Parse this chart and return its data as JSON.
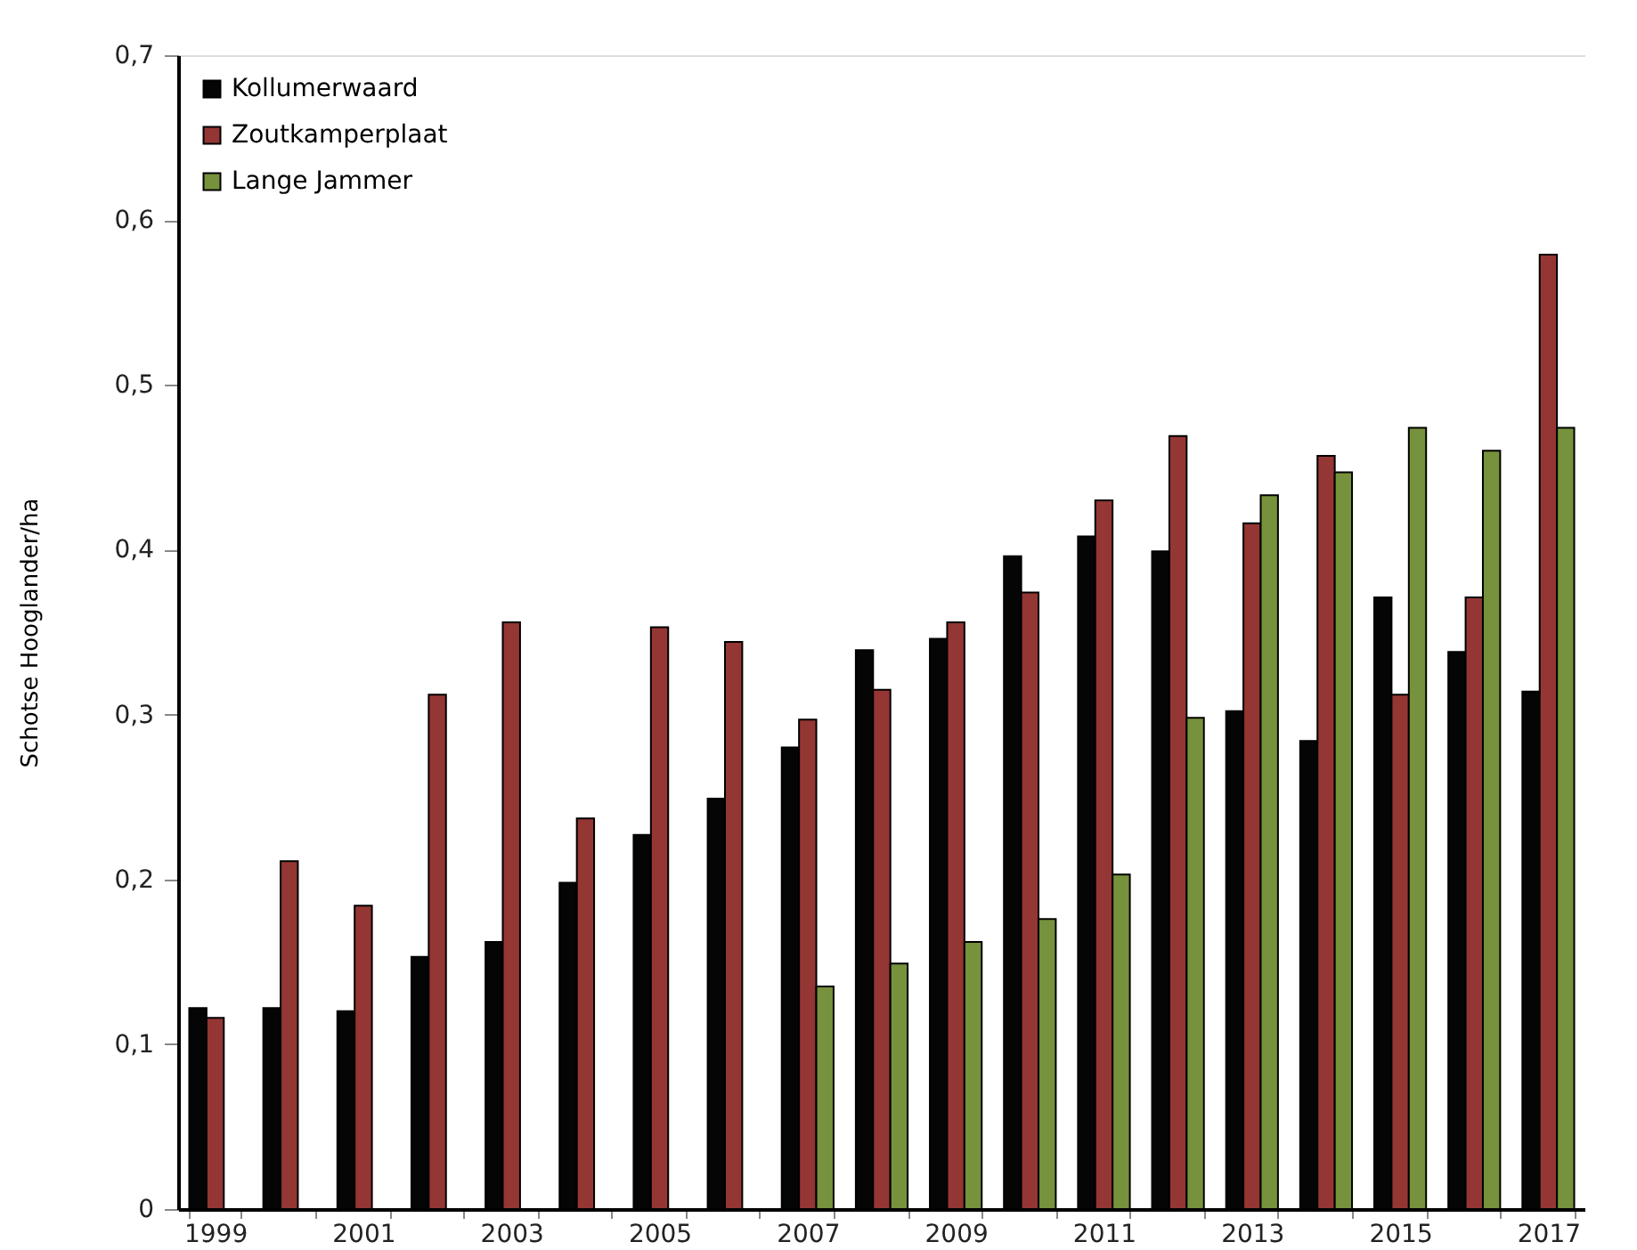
{
  "chart_data": {
    "type": "bar",
    "ylabel": "Schotse Hooglander/ha",
    "categories": [
      "1999",
      null,
      "2001",
      null,
      "2003",
      null,
      "2005",
      null,
      "2007",
      null,
      "2009",
      null,
      "2011",
      null,
      "2013",
      null,
      "2015",
      null,
      "2017"
    ],
    "series": [
      {
        "name": "Kollumerwaard",
        "color": "#050505",
        "values": [
          0.122,
          0.122,
          0.12,
          0.153,
          0.162,
          0.198,
          0.227,
          0.249,
          0.28,
          0.339,
          0.346,
          0.396,
          0.408,
          0.399,
          0.302,
          0.284,
          0.371,
          0.338,
          0.314
        ]
      },
      {
        "name": "Zoutkamperplaat",
        "color": "#943634",
        "values": [
          0.116,
          0.211,
          0.184,
          0.312,
          0.356,
          0.237,
          0.353,
          0.344,
          0.297,
          0.315,
          0.356,
          0.374,
          0.43,
          0.469,
          0.416,
          0.457,
          0.312,
          0.371,
          0.579
        ]
      },
      {
        "name": "Lange Jammer",
        "color": "#76923c",
        "values": [
          null,
          null,
          null,
          null,
          null,
          null,
          null,
          null,
          0.135,
          0.149,
          0.162,
          0.176,
          0.203,
          0.298,
          0.433,
          0.447,
          0.474,
          0.46,
          0.474
        ]
      }
    ],
    "ylim": [
      0,
      0.7
    ],
    "yticks": [
      0,
      {
        "value": 0.1,
        "label": "0,1"
      },
      {
        "value": 0.2,
        "label": "0,2"
      },
      {
        "value": 0.3,
        "label": "0,3"
      },
      {
        "value": 0.4,
        "label": "0,4"
      },
      {
        "value": 0.5,
        "label": "0,5"
      },
      {
        "value": 0.6,
        "label": "0,6"
      },
      {
        "value": 0.7,
        "label": "0,7"
      }
    ],
    "grid": false,
    "legend": "top left"
  }
}
